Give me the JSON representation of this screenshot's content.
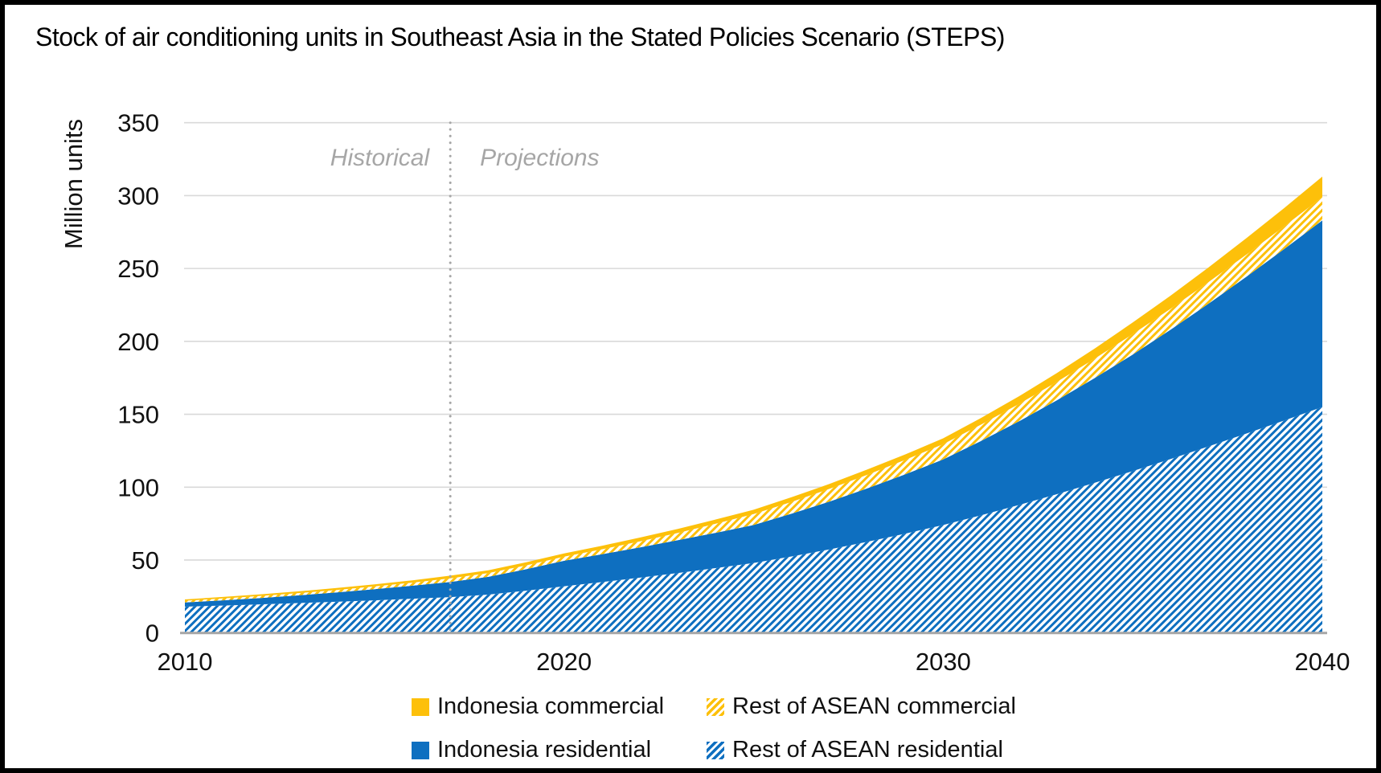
{
  "title": "Stock of air conditioning units in Southeast Asia in the Stated Policies Scenario (STEPS)",
  "chart_data": {
    "type": "area",
    "stacked": true,
    "title": "Stock of air conditioning units in Southeast Asia in the Stated Policies Scenario (STEPS)",
    "xlabel": "",
    "ylabel": "Million units",
    "ylim": [
      0,
      350
    ],
    "yticks": [
      0,
      50,
      100,
      150,
      200,
      250,
      300,
      350
    ],
    "xticks": [
      2010,
      2020,
      2030,
      2040
    ],
    "xlim": [
      2010,
      2040
    ],
    "grid": true,
    "x": [
      2010,
      2011,
      2012,
      2013,
      2014,
      2015,
      2016,
      2017,
      2018,
      2019,
      2020,
      2021,
      2022,
      2023,
      2024,
      2025,
      2026,
      2027,
      2028,
      2029,
      2030,
      2031,
      2032,
      2033,
      2034,
      2035,
      2036,
      2037,
      2038,
      2039,
      2040
    ],
    "series": [
      {
        "name": "Rest of ASEAN residential",
        "style": "hatch-blue",
        "color": "#0E6FC0",
        "values": [
          18.0,
          18.8,
          19.6,
          20.5,
          21.4,
          22.4,
          23.5,
          24.6,
          26.3,
          29.0,
          32.0,
          34.9,
          37.9,
          41.1,
          44.5,
          48.0,
          52.5,
          57.3,
          62.5,
          68.1,
          74.0,
          80.7,
          87.8,
          95.2,
          103.0,
          111.0,
          119.3,
          128.0,
          136.8,
          145.8,
          155.0
        ]
      },
      {
        "name": "Indonesia residential",
        "style": "solid-blue",
        "color": "#0E6FC0",
        "values": [
          2.9,
          3.6,
          4.4,
          5.3,
          6.4,
          7.6,
          8.9,
          10.4,
          12.2,
          14.7,
          17.5,
          19.1,
          20.8,
          22.5,
          24.2,
          26.0,
          29.3,
          32.8,
          36.7,
          40.7,
          45.0,
          51.0,
          57.4,
          64.4,
          71.9,
          80.0,
          88.7,
          97.9,
          107.6,
          117.6,
          128.0
        ]
      },
      {
        "name": "Rest of ASEAN commercial",
        "style": "hatch-yellow",
        "color": "#FDC00A",
        "values": [
          1.2,
          1.3,
          1.4,
          1.55,
          1.7,
          1.9,
          2.1,
          2.4,
          2.5,
          2.65,
          2.8,
          3.4,
          4.1,
          5.0,
          6.2,
          7.5,
          8.1,
          8.7,
          9.3,
          9.9,
          10.5,
          11.2,
          11.9,
          12.6,
          13.3,
          14.0,
          14.4,
          14.8,
          15.2,
          15.6,
          16.0
        ]
      },
      {
        "name": "Indonesia commercial",
        "style": "solid-yellow",
        "color": "#FDC00A",
        "values": [
          0.9,
          1.0,
          1.1,
          1.2,
          1.3,
          1.45,
          1.6,
          1.9,
          2.0,
          2.1,
          2.2,
          2.4,
          2.6,
          2.8,
          2.9,
          3.0,
          3.2,
          3.4,
          3.6,
          3.8,
          4.0,
          4.6,
          5.3,
          6.1,
          7.0,
          8.0,
          9.0,
          10.1,
          11.3,
          12.6,
          14.0
        ]
      }
    ],
    "divider": {
      "x": 2017,
      "left_label": "Historical",
      "right_label": "Projections"
    },
    "colors": {
      "blue": "#0E6FC0",
      "yellow": "#FDC00A",
      "grid": "#D9D9D9",
      "axis": "#A6A6A6",
      "annotation": "#A6A6A6",
      "tick_text": "#111111"
    },
    "legend_position": "bottom"
  },
  "legend": {
    "items": [
      {
        "label": "Indonesia commercial",
        "style": "solid-yellow"
      },
      {
        "label": "Rest of ASEAN commercial",
        "style": "hatch-yellow"
      },
      {
        "label": "Indonesia residential",
        "style": "solid-blue"
      },
      {
        "label": "Rest of ASEAN residential",
        "style": "hatch-blue"
      }
    ]
  }
}
